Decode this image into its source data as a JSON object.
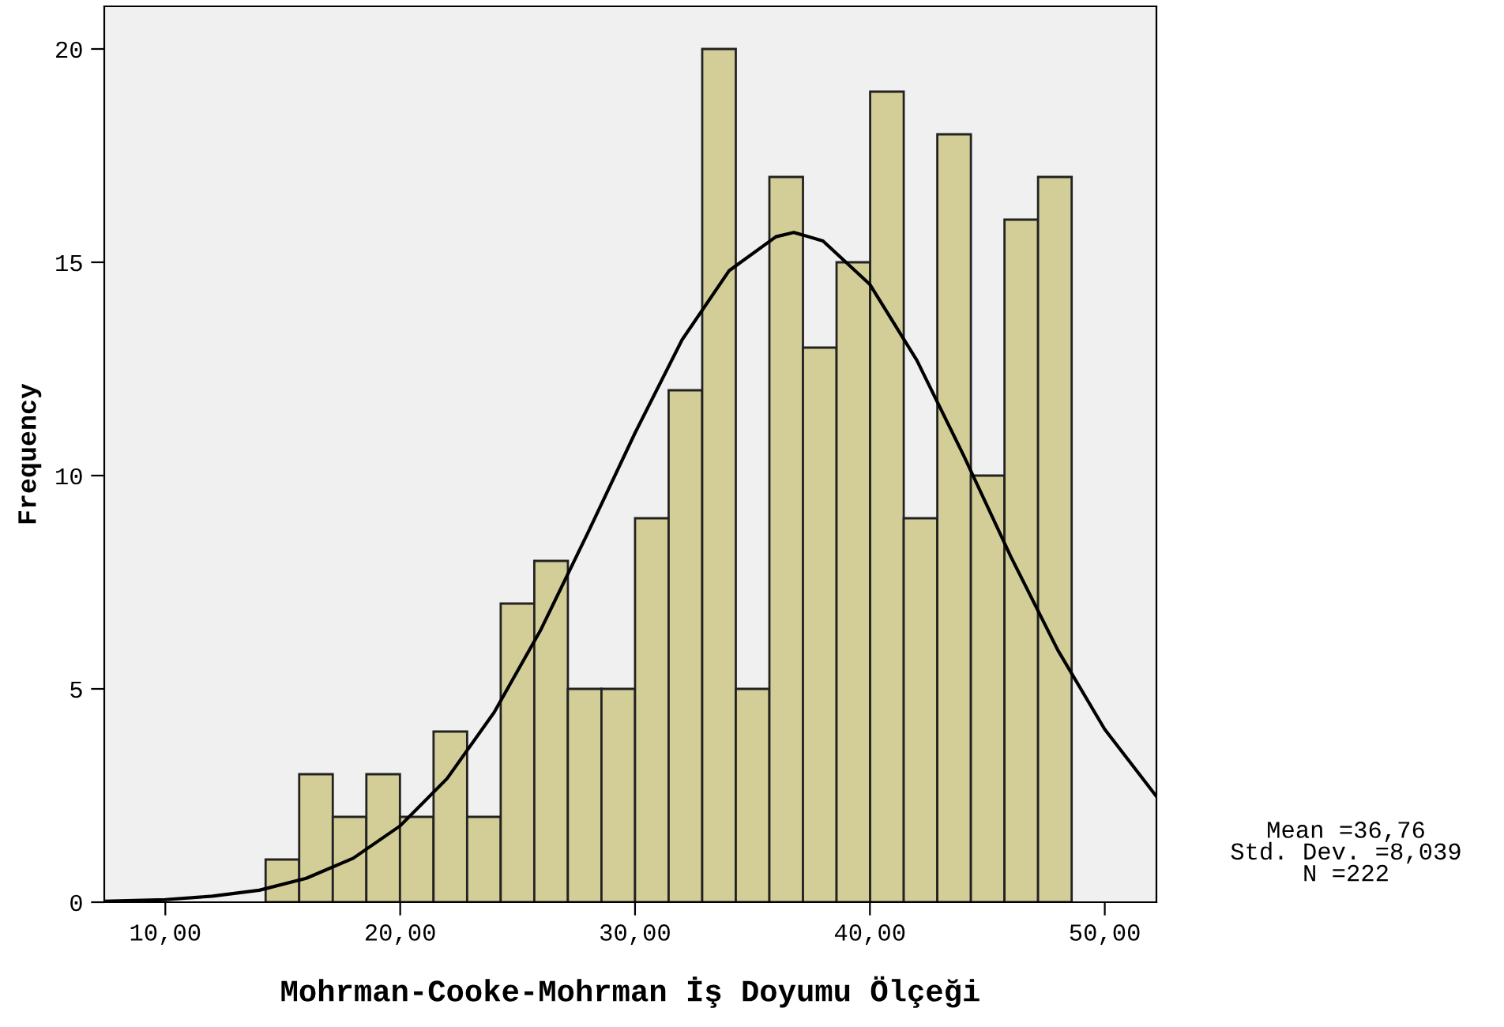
{
  "chart_data": {
    "type": "histogram",
    "xlabel": "Mohrman-Cooke-Mohrman İş Doyumu Ölçeği",
    "ylabel": "Frequency",
    "bins": [
      14.27,
      15.7,
      17.13,
      18.56,
      19.99,
      21.42,
      22.85,
      24.28,
      25.71,
      27.14,
      28.57,
      30.0,
      31.43,
      32.86,
      34.29,
      35.72,
      37.15,
      38.58,
      40.01,
      41.44,
      42.87,
      44.3,
      45.73,
      47.16,
      48.59
    ],
    "values": [
      1,
      3,
      2,
      3,
      2,
      4,
      2,
      7,
      8,
      5,
      5,
      9,
      12,
      20,
      5,
      17,
      13,
      15,
      19,
      9,
      18,
      10,
      16,
      17
    ],
    "color": "#d3ce97",
    "series": [
      {
        "type": "line",
        "color": "#000000",
        "x": [
          7.4,
          10,
          12,
          14,
          16,
          18,
          20,
          22,
          24,
          26,
          28,
          30,
          32,
          34,
          36,
          36.76,
          38,
          40,
          42,
          44,
          46,
          48,
          50,
          52.2
        ],
        "values": [
          0.02,
          0.06,
          0.14,
          0.28,
          0.56,
          1.03,
          1.79,
          2.9,
          4.45,
          6.4,
          8.67,
          11.0,
          13.18,
          14.8,
          15.6,
          15.7,
          15.5,
          14.48,
          12.7,
          10.46,
          8.1,
          5.91,
          4.05,
          2.48
        ]
      }
    ],
    "xlim": [
      7.4,
      52.2
    ],
    "ylim": [
      0,
      21
    ],
    "xticks": [
      {
        "value": 10,
        "label": "10,00"
      },
      {
        "value": 20,
        "label": "20,00"
      },
      {
        "value": 30,
        "label": "30,00"
      },
      {
        "value": 40,
        "label": "40,00"
      },
      {
        "value": 50,
        "label": "50,00"
      }
    ],
    "yticks": [
      0,
      5,
      10,
      15,
      20
    ],
    "grid": false,
    "annotations": [
      "Mean =36,76\nStd. Dev. =8,039\nN =222"
    ]
  }
}
